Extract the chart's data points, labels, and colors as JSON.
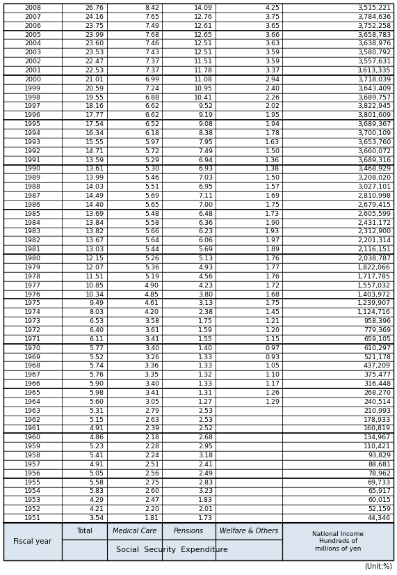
{
  "unit_label": "(Unit:%)",
  "col_header_group": "Social  Security  Expenditure",
  "sub_headers": [
    "Total",
    "Medical Care",
    "Pensions",
    "Welfare & Others"
  ],
  "sub_styles": [
    "normal",
    "italic",
    "italic",
    "italic"
  ],
  "ni_header": "National Income\nHundreds of\nmillions of yen",
  "fiscal_header": "Fiscal year",
  "rows": [
    [
      "1951",
      "3.54",
      "1.81",
      "1.73",
      "",
      "44,346"
    ],
    [
      "1952",
      "4.21",
      "2.20",
      "2.01",
      "",
      "52,159"
    ],
    [
      "1953",
      "4.29",
      "2.47",
      "1.83",
      "",
      "60,015"
    ],
    [
      "1954",
      "5.83",
      "2.60",
      "3.23",
      "",
      "65,917"
    ],
    [
      "1955",
      "5.58",
      "2.75",
      "2.83",
      "",
      "69,733"
    ],
    [
      "1956",
      "5.05",
      "2.56",
      "2.49",
      "",
      "78,962"
    ],
    [
      "1957",
      "4.91",
      "2.51",
      "2.41",
      "",
      "88,681"
    ],
    [
      "1958",
      "5.41",
      "2.24",
      "3.18",
      "",
      "93,829"
    ],
    [
      "1959",
      "5.23",
      "2.28",
      "2.95",
      "",
      "110,421"
    ],
    [
      "1960",
      "4.86",
      "2.18",
      "2.68",
      "",
      "134,967"
    ],
    [
      "1961",
      "4.91",
      "2.39",
      "2.52",
      "",
      "160,819"
    ],
    [
      "1962",
      "5.15",
      "2.63",
      "2.53",
      "",
      "178,933"
    ],
    [
      "1963",
      "5.31",
      "2.79",
      "2.53",
      "",
      "210,993"
    ],
    [
      "1964",
      "5.60",
      "3.05",
      "1.27",
      "1.29",
      "240,514"
    ],
    [
      "1965",
      "5.98",
      "3.41",
      "1.31",
      "1.26",
      "268,270"
    ],
    [
      "1966",
      "5.90",
      "3.40",
      "1.33",
      "1.17",
      "316,448"
    ],
    [
      "1967",
      "5.76",
      "3.35",
      "1.32",
      "1.10",
      "375,477"
    ],
    [
      "1968",
      "5.74",
      "3.36",
      "1.33",
      "1.05",
      "437,209"
    ],
    [
      "1969",
      "5.52",
      "3.26",
      "1.33",
      "0.93",
      "521,178"
    ],
    [
      "1970",
      "5.77",
      "3.40",
      "1.40",
      "0.97",
      "610,297"
    ],
    [
      "1971",
      "6.11",
      "3.41",
      "1.55",
      "1.15",
      "659,105"
    ],
    [
      "1972",
      "6.40",
      "3.61",
      "1.59",
      "1.20",
      "779,369"
    ],
    [
      "1973",
      "6.53",
      "3.58",
      "1.75",
      "1.21",
      "958,396"
    ],
    [
      "1974",
      "8.03",
      "4.20",
      "2.38",
      "1.45",
      "1,124,716"
    ],
    [
      "1975",
      "9.49",
      "4.61",
      "3.13",
      "1.75",
      "1,239,907"
    ],
    [
      "1976",
      "10.34",
      "4.85",
      "3.80",
      "1.68",
      "1,403,972"
    ],
    [
      "1977",
      "10.85",
      "4.90",
      "4.23",
      "1.72",
      "1,557,032"
    ],
    [
      "1978",
      "11.51",
      "5.19",
      "4.56",
      "1.76",
      "1,717,785"
    ],
    [
      "1979",
      "12.07",
      "5.36",
      "4.93",
      "1.77",
      "1,822,066"
    ],
    [
      "1980",
      "12.15",
      "5.26",
      "5.13",
      "1.76",
      "2,038,787"
    ],
    [
      "1981",
      "13.03",
      "5.44",
      "5.69",
      "1.89",
      "2,116,151"
    ],
    [
      "1982",
      "13.67",
      "5.64",
      "6.06",
      "1.97",
      "2,201,314"
    ],
    [
      "1983",
      "13.82",
      "5.66",
      "6.23",
      "1.93",
      "2,312,900"
    ],
    [
      "1984",
      "13.84",
      "5.58",
      "6.36",
      "1.90",
      "2,431,172"
    ],
    [
      "1985",
      "13.69",
      "5.48",
      "6.48",
      "1.73",
      "2,605,599"
    ],
    [
      "1986",
      "14.40",
      "5.65",
      "7.00",
      "1.75",
      "2,679,415"
    ],
    [
      "1987",
      "14.49",
      "5.69",
      "7.11",
      "1.69",
      "2,810,998"
    ],
    [
      "1988",
      "14.03",
      "5.51",
      "6.95",
      "1.57",
      "3,027,101"
    ],
    [
      "1989",
      "13.99",
      "5.46",
      "7.03",
      "1.50",
      "3,208,020"
    ],
    [
      "1990",
      "13.61",
      "5.30",
      "6.93",
      "1.38",
      "3,468,929"
    ],
    [
      "1991",
      "13.59",
      "5.29",
      "6.94",
      "1.36",
      "3,689,316"
    ],
    [
      "1992",
      "14.71",
      "5.72",
      "7.49",
      "1.50",
      "3,660,072"
    ],
    [
      "1993",
      "15.55",
      "5.97",
      "7.95",
      "1.63",
      "3,653,760"
    ],
    [
      "1994",
      "16.34",
      "6.18",
      "8.38",
      "1.78",
      "3,700,109"
    ],
    [
      "1995",
      "17.54",
      "6.52",
      "9.08",
      "1.94",
      "3,689,367"
    ],
    [
      "1996",
      "17.77",
      "6.62",
      "9.19",
      "1.95",
      "3,801,609"
    ],
    [
      "1997",
      "18.16",
      "6.62",
      "9.52",
      "2.02",
      "3,822,945"
    ],
    [
      "1998",
      "19.55",
      "6.88",
      "10.41",
      "2.26",
      "3,689,757"
    ],
    [
      "1999",
      "20.59",
      "7.24",
      "10.95",
      "2.40",
      "3,643,409"
    ],
    [
      "2000",
      "21.01",
      "6.99",
      "11.08",
      "2.94",
      "3,718,039"
    ],
    [
      "2001",
      "22.53",
      "7.37",
      "11.78",
      "3.37",
      "3,613,335"
    ],
    [
      "2002",
      "22.47",
      "7.37",
      "11.51",
      "3.59",
      "3,557,631"
    ],
    [
      "2003",
      "23.53",
      "7.43",
      "12.51",
      "3.59",
      "3,580,792"
    ],
    [
      "2004",
      "23.60",
      "7.46",
      "12.51",
      "3.63",
      "3,638,976"
    ],
    [
      "2005",
      "23.99",
      "7.68",
      "12.65",
      "3.66",
      "3,658,783"
    ],
    [
      "2006",
      "23.75",
      "7.49",
      "12.61",
      "3.65",
      "3,752,258"
    ],
    [
      "2007",
      "24.16",
      "7.65",
      "12.76",
      "3.75",
      "3,784,636"
    ],
    [
      "2008",
      "26.76",
      "8.42",
      "14.09",
      "4.25",
      "3,515,221"
    ]
  ],
  "group_breaks": [
    5,
    10,
    15,
    20,
    25,
    30,
    35,
    40,
    45,
    50,
    55
  ],
  "header_bg": "#dce6f1",
  "border_color": "#000000"
}
